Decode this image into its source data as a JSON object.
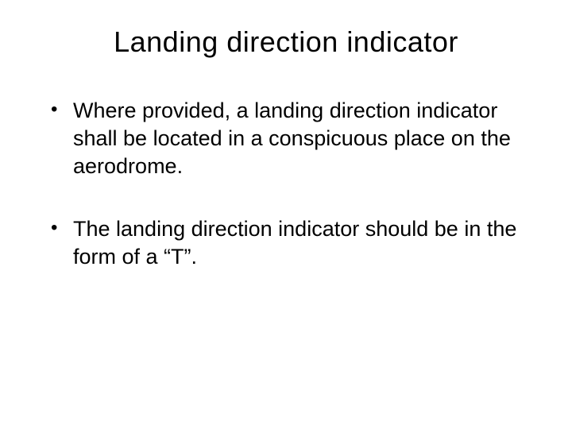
{
  "slide": {
    "title": "Landing direction indicator",
    "bullets": [
      "Where provided, a landing direction indicator shall be located in a conspicuous place on the aerodrome.",
      "The landing direction indicator should be in the form of a “T”."
    ],
    "title_fontsize": 36,
    "body_fontsize": 27,
    "text_color": "#000000",
    "background_color": "#ffffff",
    "font_family": "Arial"
  }
}
